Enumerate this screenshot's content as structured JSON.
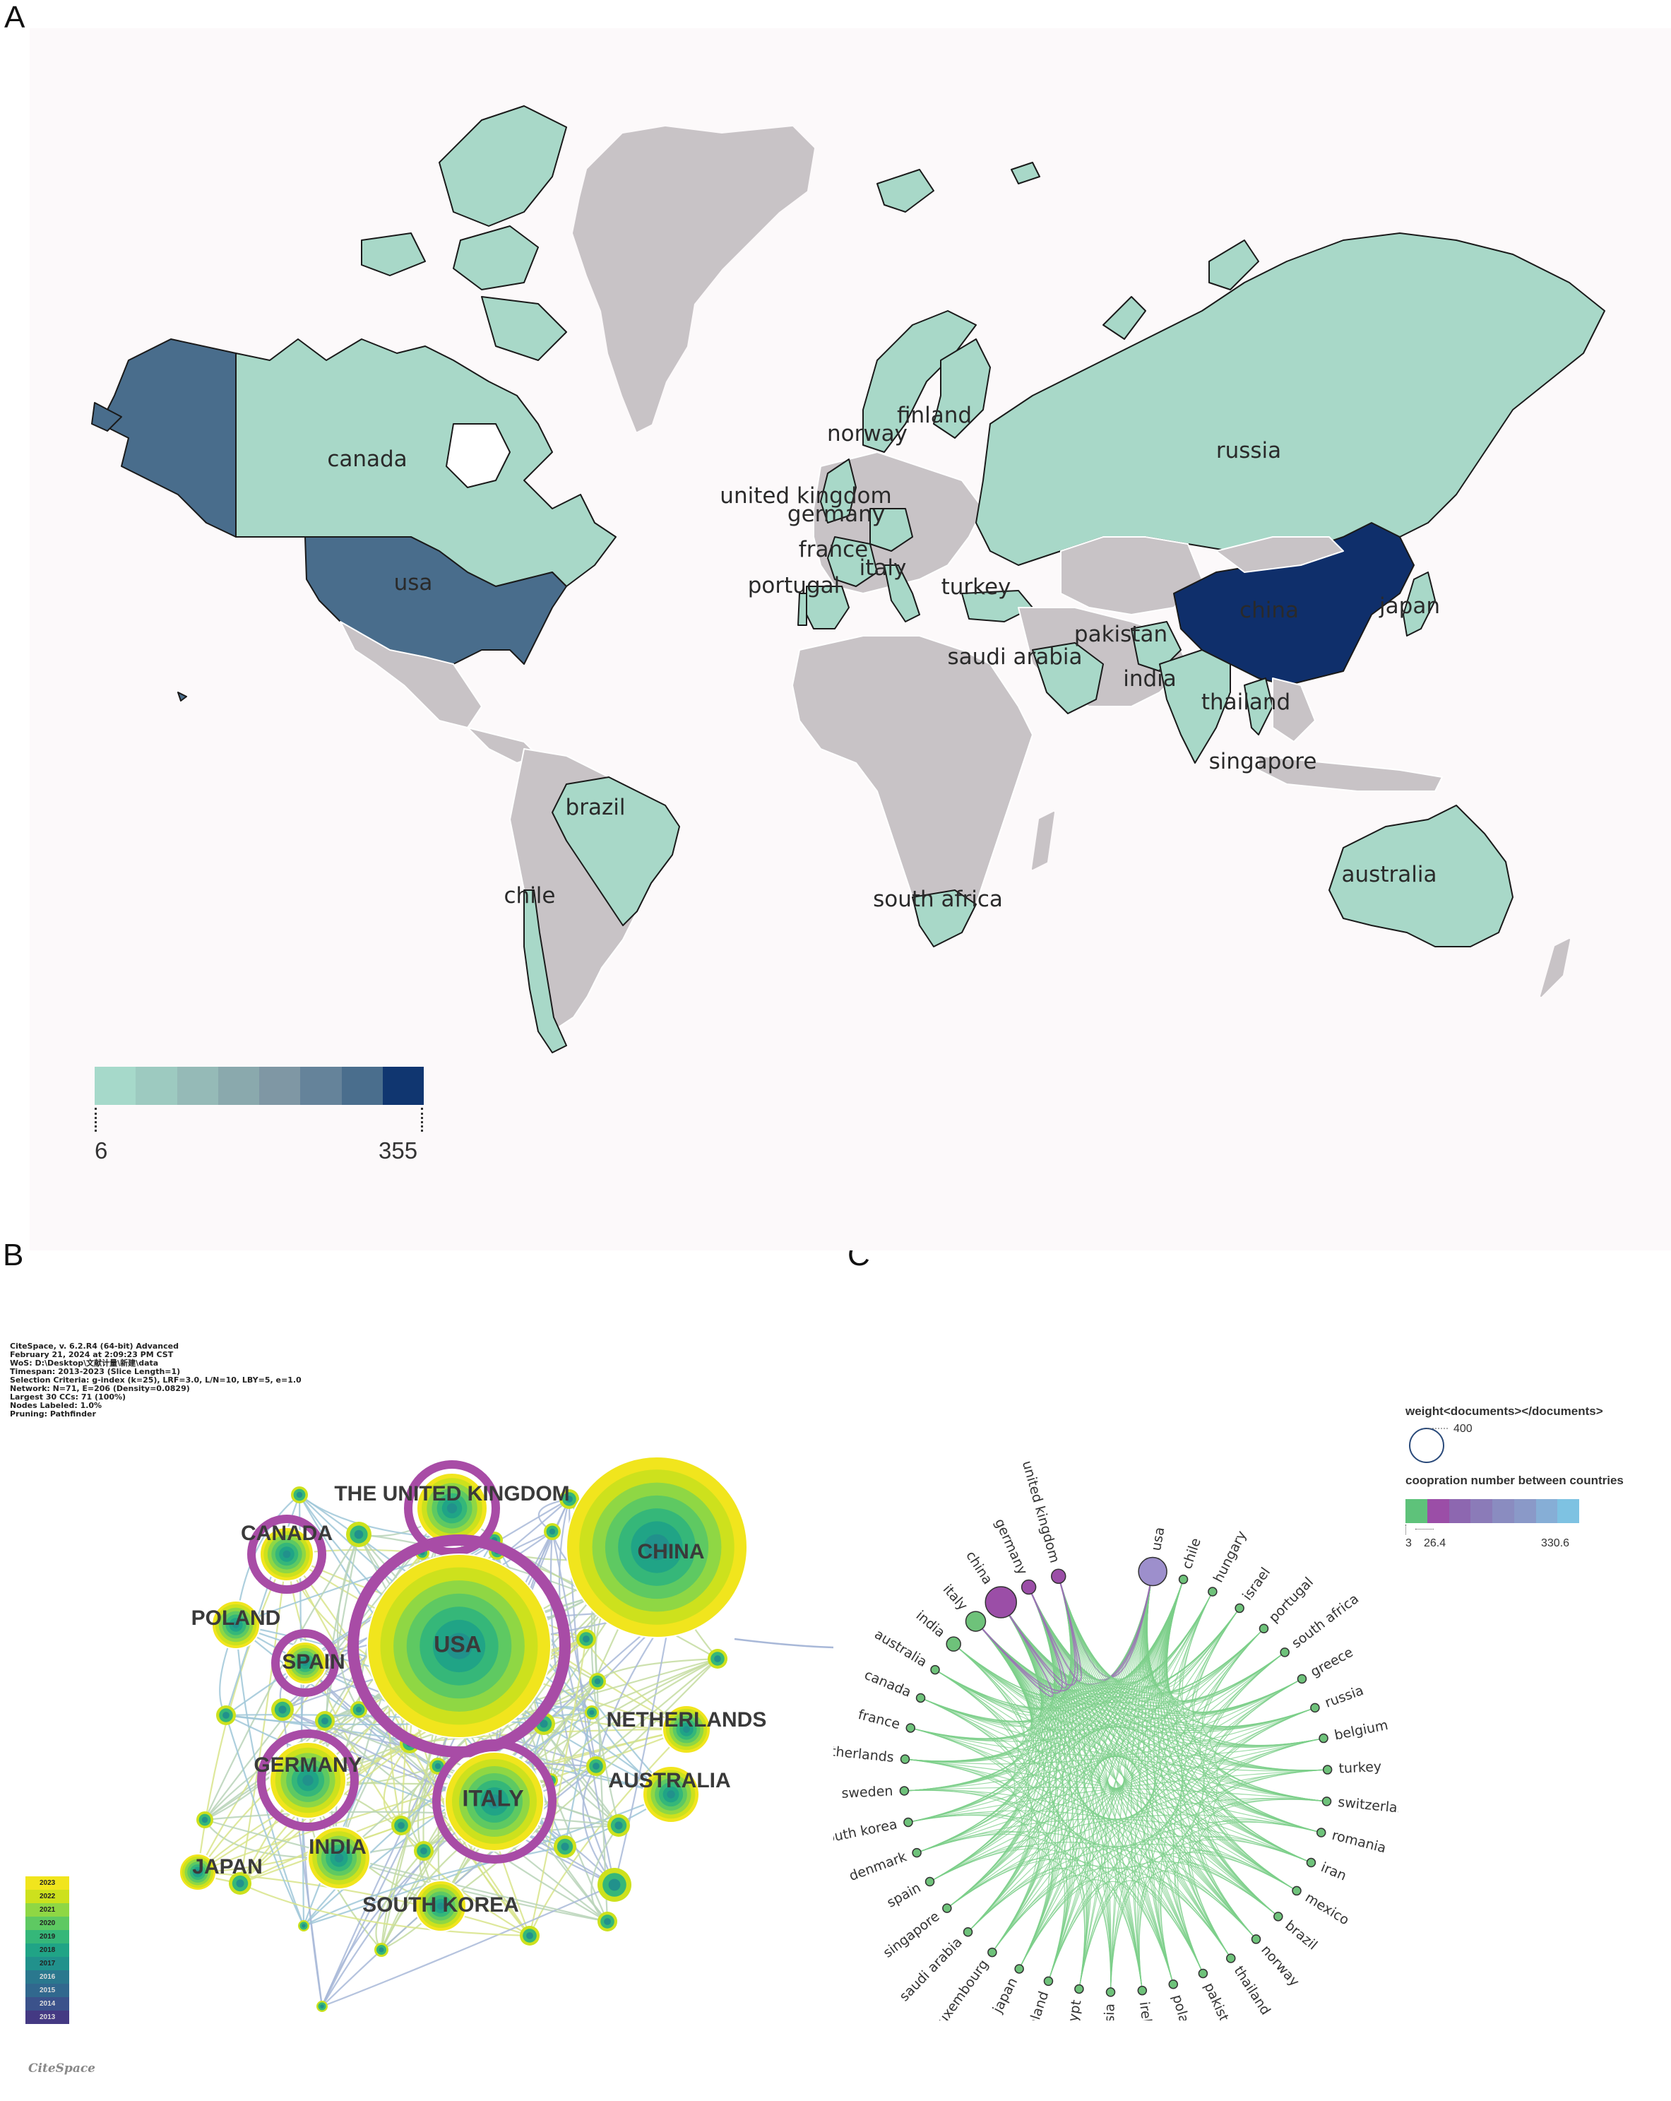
{
  "panels": {
    "a": "A",
    "b": "B",
    "c": "C"
  },
  "colors": {
    "ocean": "#fcf9fa",
    "noData": "#c8c3c6",
    "low": "#a8d8c8",
    "usa": "#496d8c",
    "china": "#0f2f6b"
  },
  "map_legend": {
    "min_label": "6",
    "max_label": "355",
    "colors": [
      "#a6d9ca",
      "#9dcac0",
      "#95bab7",
      "#8aa9ad",
      "#7f97a4",
      "#65839a",
      "#4a6e8d",
      "#103670"
    ]
  },
  "map_labels": [
    {
      "name": "canada",
      "text": "canada"
    },
    {
      "name": "usa",
      "text": "usa"
    },
    {
      "name": "brazil",
      "text": "brazil"
    },
    {
      "name": "chile",
      "text": "chile"
    },
    {
      "name": "norway",
      "text": "norway"
    },
    {
      "name": "finland",
      "text": "finland"
    },
    {
      "name": "united-kingdom",
      "text": "united kingdom"
    },
    {
      "name": "germany",
      "text": "germany"
    },
    {
      "name": "france",
      "text": "france"
    },
    {
      "name": "italy",
      "text": "italy"
    },
    {
      "name": "portugal",
      "text": "portugal"
    },
    {
      "name": "turkey",
      "text": "turkey"
    },
    {
      "name": "saudi-arabia",
      "text": "saudi arabia"
    },
    {
      "name": "pakistan",
      "text": "pakistan"
    },
    {
      "name": "india",
      "text": "india"
    },
    {
      "name": "thailand",
      "text": "thailand"
    },
    {
      "name": "singapore",
      "text": "singapore"
    },
    {
      "name": "south-africa",
      "text": "south africa"
    },
    {
      "name": "russia",
      "text": "russia"
    },
    {
      "name": "china",
      "text": "china"
    },
    {
      "name": "japan",
      "text": "japan"
    },
    {
      "name": "australia",
      "text": "australia"
    }
  ],
  "citespace_info": [
    "CiteSpace, v. 6.2.R4 (64-bit) Advanced",
    "February 21, 2024 at 2:09:23 PM CST",
    "WoS: D:\\Desktop\\文献计量\\新建\\data",
    "Timespan: 2013-2023 (Slice Length=1)",
    "Selection Criteria: g-index (k=25), LRF=3.0, L/N=10, LBY=5, e=1.0",
    "Network: N=71, E=206 (Density=0.0829)",
    "Largest 30 CCs: 71 (100%)",
    "Nodes Labeled: 1.0%",
    "Pruning: Pathfinder"
  ],
  "year_legend": [
    "2023",
    "2022",
    "2021",
    "2020",
    "2019",
    "2018",
    "2017",
    "2016",
    "2015",
    "2014",
    "2013"
  ],
  "year_colors": [
    "#f1e51d",
    "#cde11d",
    "#8fd744",
    "#5ec962",
    "#35b779",
    "#20a486",
    "#21918c",
    "#2a788e",
    "#31688e",
    "#3b528b",
    "#443983"
  ],
  "citespace_logo": "CiteSpace",
  "network_b_nodes": [
    {
      "text": "THE UNITED KINGDOM",
      "name": "node-uk"
    },
    {
      "text": "CANADA",
      "name": "node-canada"
    },
    {
      "text": "CHINA",
      "name": "node-china"
    },
    {
      "text": "POLAND",
      "name": "node-poland"
    },
    {
      "text": "SPAIN",
      "name": "node-spain"
    },
    {
      "text": "USA",
      "name": "node-usa"
    },
    {
      "text": "NETHERLANDS",
      "name": "node-netherlands"
    },
    {
      "text": "GERMANY",
      "name": "node-germany"
    },
    {
      "text": "AUSTRALIA",
      "name": "node-australia"
    },
    {
      "text": "ITALY",
      "name": "node-italy"
    },
    {
      "text": "INDIA",
      "name": "node-india"
    },
    {
      "text": "JAPAN",
      "name": "node-japan"
    },
    {
      "text": "SOUTH KOREA",
      "name": "node-south-korea"
    }
  ],
  "chord_countries": [
    "usa",
    "chile",
    "hungary",
    "israel",
    "portugal",
    "south africa",
    "greece",
    "russia",
    "belgium",
    "turkey",
    "switzerland",
    "romania",
    "iran",
    "mexico",
    "brazil",
    "norway",
    "thailand",
    "pakistan",
    "poland",
    "ireland",
    "malaysia",
    "egypt",
    "finland",
    "japan",
    "luxembourg",
    "saudi arabia",
    "singapore",
    "spain",
    "denmark",
    "south korea",
    "sweden",
    "netherlands",
    "france",
    "canada",
    "australia",
    "india",
    "italy",
    "china",
    "germany",
    "united kingdom"
  ],
  "legend_c": {
    "weight_title": "weight<documents></documents>",
    "weight_value": "400",
    "coop_title": "coopration number between countries",
    "coop_colors": [
      "#5ec27a",
      "#9b4ea7",
      "#8d67b0",
      "#8b7bb8",
      "#8a8cc0",
      "#8a99c8",
      "#86aed6",
      "#7ec2e2"
    ],
    "ticks": [
      "3",
      "26.4",
      "330.6"
    ]
  }
}
